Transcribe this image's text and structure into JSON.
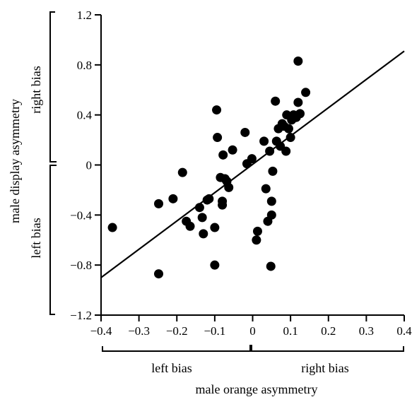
{
  "chart_data": {
    "type": "scatter",
    "xlabel": "male orange asymmetry",
    "ylabel": "male display asymmetry",
    "xlim": [
      -0.4,
      0.4
    ],
    "ylim": [
      -1.2,
      1.2
    ],
    "x_ticks": [
      -0.4,
      -0.3,
      -0.2,
      -0.1,
      0,
      0.1,
      0.2,
      0.3,
      0.4
    ],
    "y_ticks": [
      -1.2,
      -0.8,
      -0.4,
      0,
      0.4,
      0.8,
      1.2
    ],
    "x_tick_labels": [
      "−0.4",
      "−0.3",
      "−0.2",
      "−0.1",
      "0",
      "0.1",
      "0.2",
      "0.3",
      "0.4"
    ],
    "y_tick_labels": [
      "−1.2",
      "−0.8",
      "−0.4",
      "0",
      "0.4",
      "0.8",
      "1.2"
    ],
    "x_bias_labels": {
      "left": "left bias",
      "right": "right bias"
    },
    "y_bias_labels": {
      "bottom": "left bias",
      "top": "right bias"
    },
    "grid": false,
    "regression_line": {
      "x": [
        -0.4,
        0.4
      ],
      "y": [
        -0.9,
        0.91
      ]
    },
    "points": [
      {
        "x": -0.37,
        "y": -0.5
      },
      {
        "x": -0.248,
        "y": -0.31
      },
      {
        "x": -0.248,
        "y": -0.87
      },
      {
        "x": -0.21,
        "y": -0.27
      },
      {
        "x": -0.185,
        "y": -0.06
      },
      {
        "x": -0.175,
        "y": -0.45
      },
      {
        "x": -0.165,
        "y": -0.49
      },
      {
        "x": -0.14,
        "y": -0.34
      },
      {
        "x": -0.133,
        "y": -0.42
      },
      {
        "x": -0.13,
        "y": -0.55
      },
      {
        "x": -0.12,
        "y": -0.28
      },
      {
        "x": -0.115,
        "y": -0.27
      },
      {
        "x": -0.1,
        "y": -0.8
      },
      {
        "x": -0.1,
        "y": -0.5
      },
      {
        "x": -0.095,
        "y": 0.44
      },
      {
        "x": -0.093,
        "y": 0.22
      },
      {
        "x": -0.085,
        "y": -0.1
      },
      {
        "x": -0.08,
        "y": -0.29
      },
      {
        "x": -0.08,
        "y": -0.32
      },
      {
        "x": -0.078,
        "y": 0.08
      },
      {
        "x": -0.073,
        "y": -0.11
      },
      {
        "x": -0.068,
        "y": -0.13
      },
      {
        "x": -0.063,
        "y": -0.18
      },
      {
        "x": -0.053,
        "y": 0.12
      },
      {
        "x": -0.02,
        "y": 0.26
      },
      {
        "x": -0.015,
        "y": 0.01
      },
      {
        "x": -0.002,
        "y": 0.05
      },
      {
        "x": 0.01,
        "y": -0.6
      },
      {
        "x": 0.013,
        "y": -0.53
      },
      {
        "x": 0.03,
        "y": 0.19
      },
      {
        "x": 0.035,
        "y": -0.19
      },
      {
        "x": 0.04,
        "y": -0.45
      },
      {
        "x": 0.045,
        "y": 0.11
      },
      {
        "x": 0.048,
        "y": -0.81
      },
      {
        "x": 0.05,
        "y": -0.29
      },
      {
        "x": 0.05,
        "y": -0.4
      },
      {
        "x": 0.053,
        "y": -0.05
      },
      {
        "x": 0.06,
        "y": 0.51
      },
      {
        "x": 0.063,
        "y": 0.19
      },
      {
        "x": 0.068,
        "y": 0.29
      },
      {
        "x": 0.073,
        "y": 0.15
      },
      {
        "x": 0.078,
        "y": 0.33
      },
      {
        "x": 0.083,
        "y": 0.31
      },
      {
        "x": 0.088,
        "y": 0.11
      },
      {
        "x": 0.09,
        "y": 0.4
      },
      {
        "x": 0.095,
        "y": 0.29
      },
      {
        "x": 0.1,
        "y": 0.22
      },
      {
        "x": 0.103,
        "y": 0.36
      },
      {
        "x": 0.108,
        "y": 0.4
      },
      {
        "x": 0.115,
        "y": 0.38
      },
      {
        "x": 0.12,
        "y": 0.5
      },
      {
        "x": 0.12,
        "y": 0.83
      },
      {
        "x": 0.125,
        "y": 0.41
      },
      {
        "x": 0.14,
        "y": 0.58
      }
    ]
  }
}
